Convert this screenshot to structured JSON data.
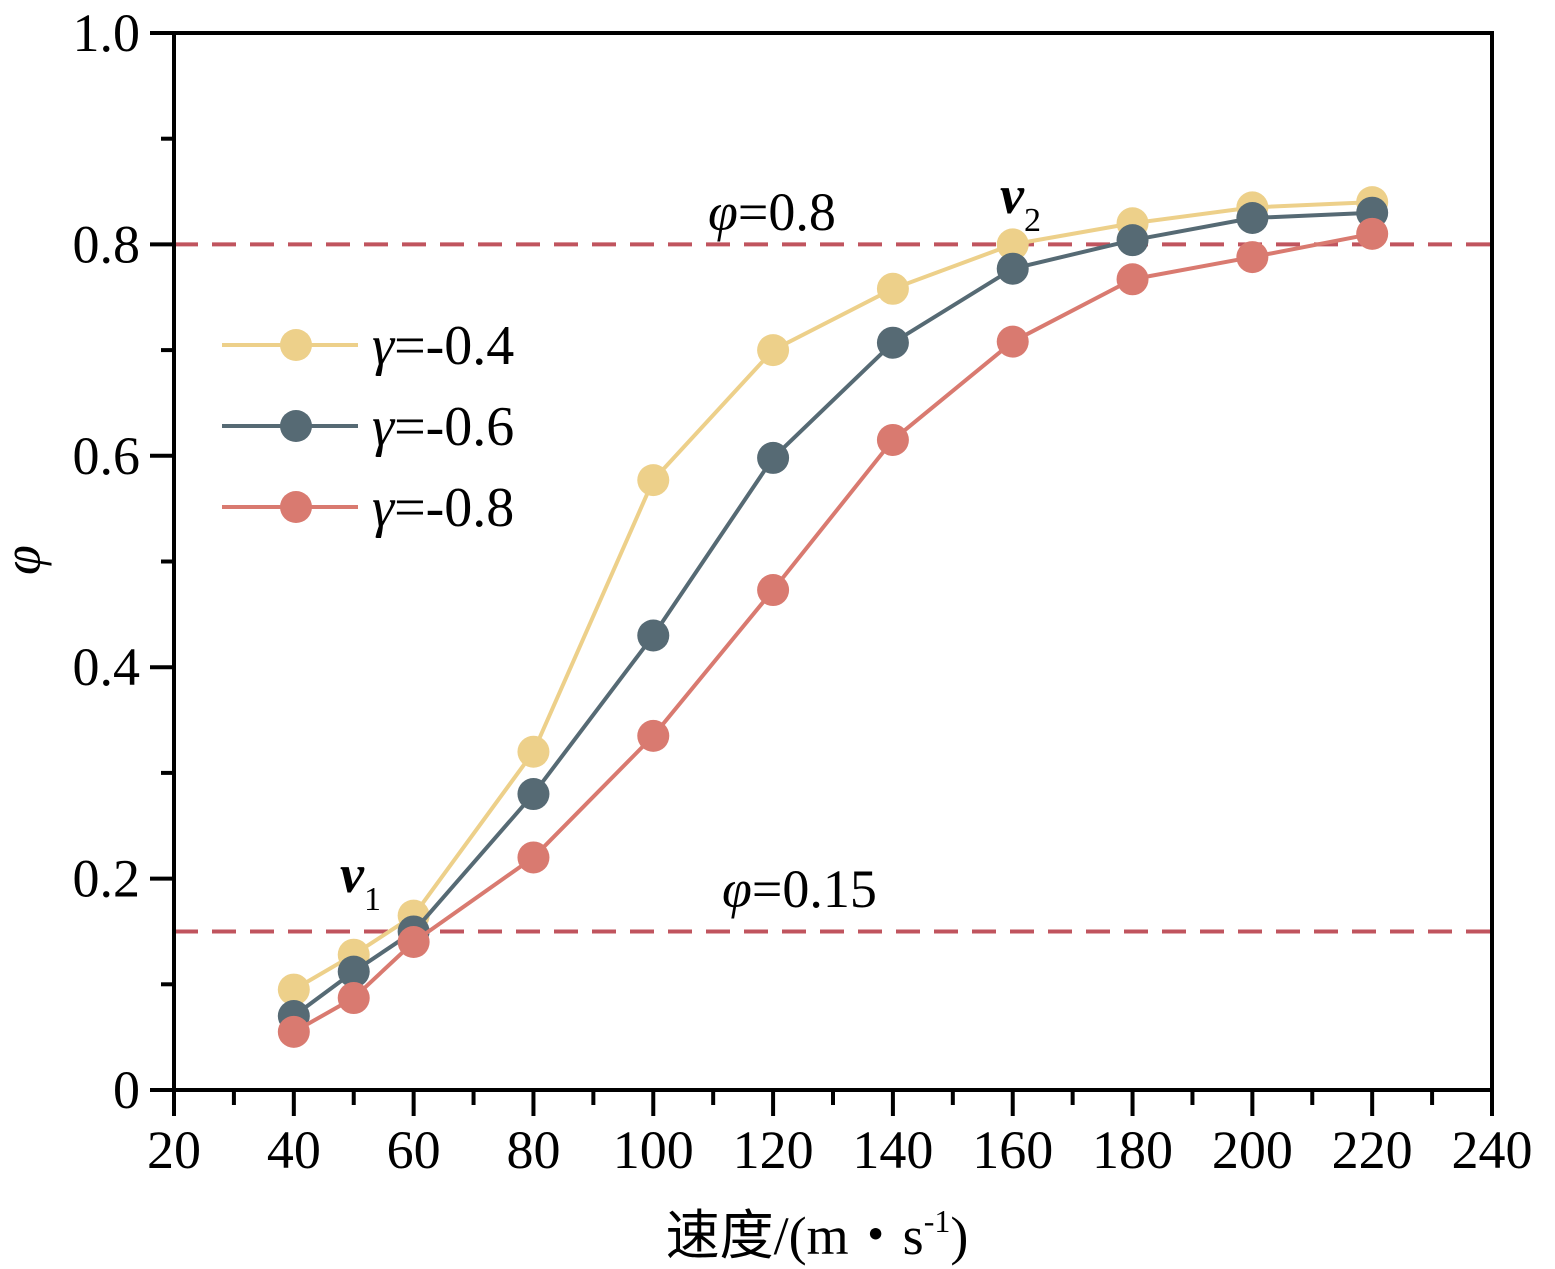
{
  "chart_data": {
    "type": "line",
    "x": [
      40,
      50,
      60,
      80,
      100,
      120,
      140,
      160,
      180,
      200,
      220
    ],
    "series": [
      {
        "name": "γ=-0.4",
        "symbol": "γ",
        "suffix": "=-0.4",
        "color": "#EDD08A",
        "values": [
          0.095,
          0.128,
          0.165,
          0.32,
          0.577,
          0.7,
          0.758,
          0.8,
          0.82,
          0.835,
          0.84
        ]
      },
      {
        "name": "γ=-0.6",
        "symbol": "γ",
        "suffix": "=-0.6",
        "color": "#566A74",
        "values": [
          0.07,
          0.112,
          0.15,
          0.28,
          0.43,
          0.598,
          0.707,
          0.777,
          0.804,
          0.825,
          0.83
        ]
      },
      {
        "name": "γ=-0.8",
        "symbol": "γ",
        "suffix": "=-0.8",
        "color": "#D97A70",
        "values": [
          0.055,
          0.087,
          0.14,
          0.22,
          0.335,
          0.473,
          0.615,
          0.708,
          0.767,
          0.788,
          0.81
        ]
      }
    ],
    "xlim": [
      20,
      240
    ],
    "ylim": [
      0,
      1.0
    ],
    "xticks": [
      20,
      40,
      60,
      80,
      100,
      120,
      140,
      160,
      180,
      200,
      220,
      240
    ],
    "xtick_labels": [
      "20",
      "40",
      "60",
      "80",
      "100",
      "120",
      "140",
      "160",
      "180",
      "200",
      "220",
      "240"
    ],
    "yticks": [
      0,
      0.2,
      0.4,
      0.6,
      0.8,
      1.0
    ],
    "ytick_labels": [
      "0",
      "0.2",
      "0.4",
      "0.6",
      "0.8",
      "1.0"
    ],
    "xlabel": {
      "main": "速度/(m・s",
      "sup": "-1",
      "close": ")"
    },
    "ylabel": "φ",
    "reference_lines": [
      {
        "y": 0.8,
        "symbol": "φ",
        "value_text": "=0.8",
        "color": "#C0545E"
      },
      {
        "y": 0.15,
        "symbol": "φ",
        "value_text": "=0.15",
        "color": "#C0545E"
      }
    ],
    "annotations": [
      {
        "base": "v",
        "sub": "1",
        "x": 50,
        "y": 0.185
      },
      {
        "base": "v",
        "sub": "2",
        "x": 160,
        "y": 0.845
      }
    ],
    "legend_position": "upper-left"
  }
}
